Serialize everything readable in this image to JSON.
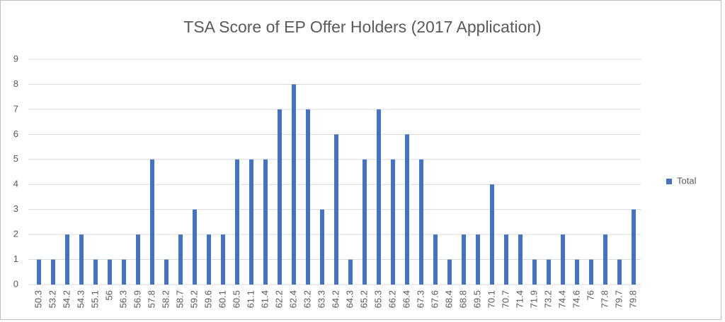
{
  "chart_data": {
    "type": "bar",
    "title": "TSA Score of EP Offer Holders (2017 Application)",
    "categories": [
      "50.3",
      "53.2",
      "54.2",
      "54.3",
      "55.1",
      "56",
      "56.3",
      "56.9",
      "57.8",
      "58.2",
      "58.7",
      "59.2",
      "59.6",
      "60.1",
      "60.5",
      "61.1",
      "61.4",
      "62.2",
      "62.4",
      "63.2",
      "63.3",
      "64.2",
      "64.3",
      "65.2",
      "65.3",
      "66.2",
      "66.4",
      "67.3",
      "67.6",
      "68.4",
      "68.8",
      "69.5",
      "70.1",
      "70.7",
      "71.4",
      "71.9",
      "73.2",
      "74.4",
      "74.6",
      "76",
      "77.8",
      "79.7",
      "79.8"
    ],
    "series": [
      {
        "name": "Total",
        "color": "#4472c4",
        "values": [
          1,
          1,
          2,
          2,
          1,
          1,
          1,
          2,
          5,
          1,
          2,
          3,
          2,
          2,
          5,
          5,
          5,
          7,
          8,
          7,
          3,
          6,
          1,
          5,
          7,
          5,
          6,
          5,
          2,
          1,
          2,
          2,
          4,
          2,
          2,
          1,
          1,
          2,
          1,
          1,
          2,
          1,
          3
        ]
      }
    ],
    "ylim": [
      0,
      9
    ],
    "yticks": [
      0,
      1,
      2,
      3,
      4,
      5,
      6,
      7,
      8,
      9
    ],
    "grid": true,
    "legend": "right"
  }
}
